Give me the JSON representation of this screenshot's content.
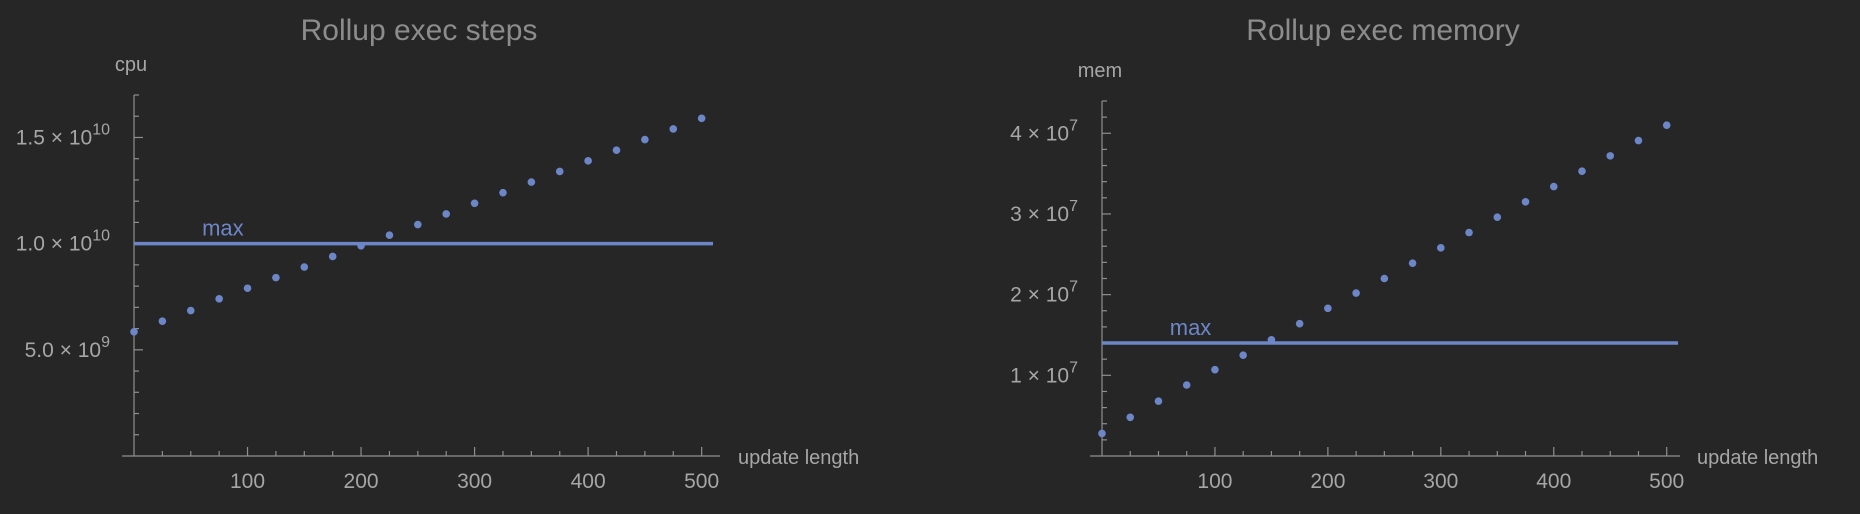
{
  "chart_data": [
    {
      "type": "scatter",
      "title": "Rollup exec steps",
      "xlabel": "update length",
      "ylabel": "cpu",
      "xlim": [
        0,
        510
      ],
      "ylim": [
        0,
        17000000000.0
      ],
      "x_ticks": [
        100,
        200,
        300,
        400,
        500
      ],
      "x_tick_labels": [
        "100",
        "200",
        "300",
        "400",
        "500"
      ],
      "y_ticks": [
        {
          "value": 5000000000.0,
          "mantissa": "5.0",
          "exp": "9"
        },
        {
          "value": 10000000000.0,
          "mantissa": "1.0",
          "exp": "10"
        },
        {
          "value": 15000000000.0,
          "mantissa": "1.5",
          "exp": "10"
        }
      ],
      "series": [
        {
          "x": [
            0,
            25,
            50,
            75,
            100,
            125,
            150,
            175,
            200,
            225,
            250,
            275,
            300,
            325,
            350,
            375,
            400,
            425,
            450,
            475,
            500
          ],
          "values": [
            5850000000.0,
            6350000000.0,
            6850000000.0,
            7400000000.0,
            7900000000.0,
            8400000000.0,
            8900000000.0,
            9400000000.0,
            9900000000.0,
            10400000000.0,
            10900000000.0,
            11400000000.0,
            11900000000.0,
            12400000000.0,
            12900000000.0,
            13400000000.0,
            13900000000.0,
            14400000000.0,
            14900000000.0,
            15400000000.0,
            15900000000.0
          ],
          "color": "#6c86c8"
        }
      ],
      "max_line": {
        "label": "max",
        "value": 10000000000.0,
        "color": "#6c86c8"
      },
      "grid": false
    },
    {
      "type": "scatter",
      "title": "Rollup exec memory",
      "xlabel": "update length",
      "ylabel": "mem",
      "xlim": [
        0,
        510
      ],
      "ylim": [
        0,
        44000000.0
      ],
      "x_ticks": [
        100,
        200,
        300,
        400,
        500
      ],
      "x_tick_labels": [
        "100",
        "200",
        "300",
        "400",
        "500"
      ],
      "y_ticks": [
        {
          "value": 10000000.0,
          "mantissa": "1",
          "exp": "7"
        },
        {
          "value": 20000000.0,
          "mantissa": "2",
          "exp": "7"
        },
        {
          "value": 30000000.0,
          "mantissa": "3",
          "exp": "7"
        },
        {
          "value": 40000000.0,
          "mantissa": "4",
          "exp": "7"
        }
      ],
      "series": [
        {
          "x": [
            0,
            25,
            50,
            75,
            100,
            125,
            150,
            175,
            200,
            225,
            250,
            275,
            300,
            325,
            350,
            375,
            400,
            425,
            450,
            475,
            500
          ],
          "values": [
            2800000.0,
            4800000.0,
            6800000.0,
            8800000.0,
            10700000.0,
            12500000.0,
            14400000.0,
            16400000.0,
            18300000.0,
            20200000.0,
            22000000.0,
            23900000.0,
            25800000.0,
            27700000.0,
            29600000.0,
            31500000.0,
            33400000.0,
            35300000.0,
            37200000.0,
            39100000.0,
            41000000.0
          ],
          "color": "#6c86c8"
        }
      ],
      "max_line": {
        "label": "max",
        "value": 14000000.0,
        "color": "#6c86c8"
      },
      "grid": false
    }
  ]
}
